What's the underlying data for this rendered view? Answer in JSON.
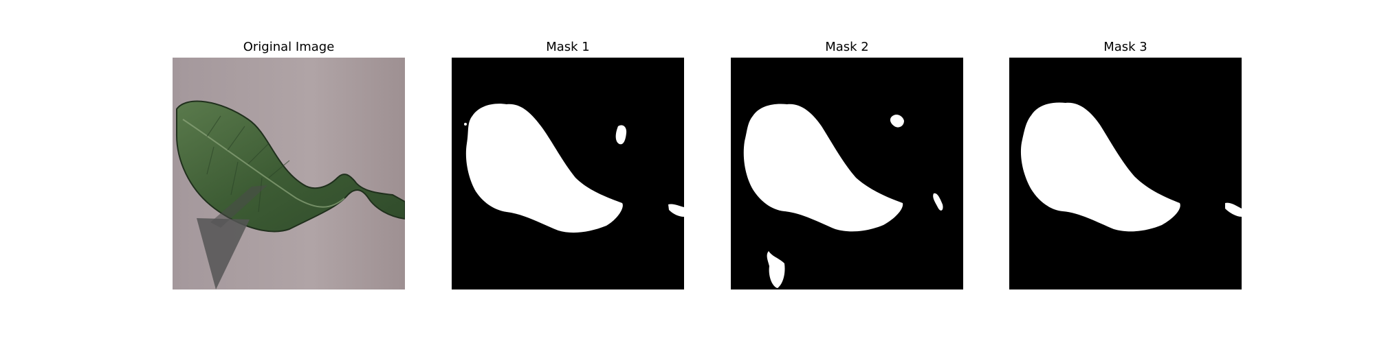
{
  "figure": {
    "panels": [
      {
        "title": "Original Image"
      },
      {
        "title": "Mask 1"
      },
      {
        "title": "Mask 2"
      },
      {
        "title": "Mask 3"
      }
    ]
  },
  "colors": {
    "background": "#ffffff",
    "mask_background": "#000000",
    "mask_foreground": "#ffffff",
    "leaf_green": "#3f5e36",
    "photo_backdrop": "#a89a9c",
    "triangle_overlay": "#4a4a4a"
  }
}
